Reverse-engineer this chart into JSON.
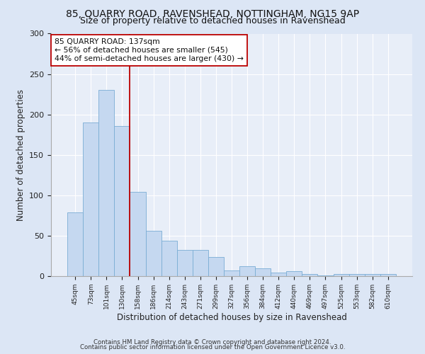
{
  "title1": "85, QUARRY ROAD, RAVENSHEAD, NOTTINGHAM, NG15 9AP",
  "title2": "Size of property relative to detached houses in Ravenshead",
  "xlabel": "Distribution of detached houses by size in Ravenshead",
  "ylabel": "Number of detached properties",
  "categories": [
    "45sqm",
    "73sqm",
    "101sqm",
    "130sqm",
    "158sqm",
    "186sqm",
    "214sqm",
    "243sqm",
    "271sqm",
    "299sqm",
    "327sqm",
    "356sqm",
    "384sqm",
    "412sqm",
    "440sqm",
    "469sqm",
    "497sqm",
    "525sqm",
    "553sqm",
    "582sqm",
    "610sqm"
  ],
  "values": [
    79,
    190,
    230,
    186,
    104,
    56,
    44,
    32,
    32,
    24,
    7,
    12,
    10,
    4,
    6,
    3,
    1,
    3,
    3,
    3,
    3
  ],
  "bar_color": "#c5d8f0",
  "bar_edge_color": "#7aadd4",
  "vline_x_index": 3.5,
  "vline_color": "#bb0000",
  "annotation_title": "85 QUARRY ROAD: 137sqm",
  "annotation_line1": "← 56% of detached houses are smaller (545)",
  "annotation_line2": "44% of semi-detached houses are larger (430) →",
  "annotation_box_color": "#ffffff",
  "annotation_box_edge_color": "#bb0000",
  "ylim": [
    0,
    300
  ],
  "yticks": [
    0,
    50,
    100,
    150,
    200,
    250,
    300
  ],
  "footnote1": "Contains HM Land Registry data © Crown copyright and database right 2024.",
  "footnote2": "Contains public sector information licensed under the Open Government Licence v3.0.",
  "bg_color": "#dce6f5",
  "plot_bg_color": "#e8eef8",
  "title1_fontsize": 10,
  "title2_fontsize": 9,
  "grid_color": "#ffffff"
}
